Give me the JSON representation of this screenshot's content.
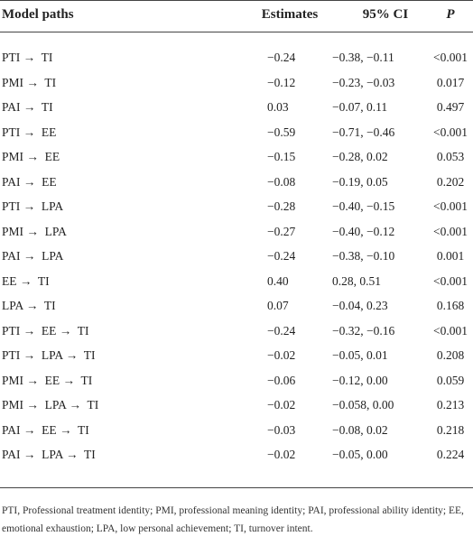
{
  "table": {
    "header": [
      "Model paths",
      "Estimates",
      "95% CI",
      "P"
    ],
    "rows": [
      [
        "PTI →  TI",
        "−0.24",
        "−0.38, −0.11",
        "<0.001"
      ],
      [
        "PMI →  TI",
        "−0.12",
        "−0.23, −0.03",
        "0.017"
      ],
      [
        "PAI →  TI",
        "0.03",
        "−0.07, 0.11",
        "0.497"
      ],
      [
        "PTI →  EE",
        "−0.59",
        "−0.71, −0.46",
        "<0.001"
      ],
      [
        "PMI →  EE",
        "−0.15",
        "−0.28, 0.02",
        "0.053"
      ],
      [
        "PAI →  EE",
        "−0.08",
        "−0.19, 0.05",
        "0.202"
      ],
      [
        "PTI →  LPA",
        "−0.28",
        "−0.40, −0.15",
        "<0.001"
      ],
      [
        "PMI →  LPA",
        "−0.27",
        "−0.40, −0.12",
        "<0.001"
      ],
      [
        "PAI →  LPA",
        "−0.24",
        "−0.38, −0.10",
        "0.001"
      ],
      [
        "EE →  TI",
        "0.40",
        "0.28, 0.51",
        "<0.001"
      ],
      [
        "LPA →  TI",
        "0.07",
        "−0.04, 0.23",
        "0.168"
      ],
      [
        "PTI →  EE →  TI",
        "−0.24",
        "−0.32, −0.16",
        "<0.001"
      ],
      [
        "PTI →  LPA →  TI",
        "−0.02",
        "−0.05, 0.01",
        "0.208"
      ],
      [
        "PMI →  EE →  TI",
        "−0.06",
        "−0.12, 0.00",
        "0.059"
      ],
      [
        "PMI →  LPA →  TI",
        "−0.02",
        "−0.058, 0.00",
        "0.213"
      ],
      [
        "PAI →  EE →  TI",
        "−0.03",
        "−0.08, 0.02",
        "0.218"
      ],
      [
        "PAI →  LPA →  TI",
        "−0.02",
        "−0.05, 0.00",
        "0.224"
      ]
    ],
    "footnote": "PTI, Professional treatment identity; PMI, professional meaning identity; PAI, professional ability identity; EE, emotional exhaustion; LPA, low personal achievement; TI, turnover intent."
  }
}
